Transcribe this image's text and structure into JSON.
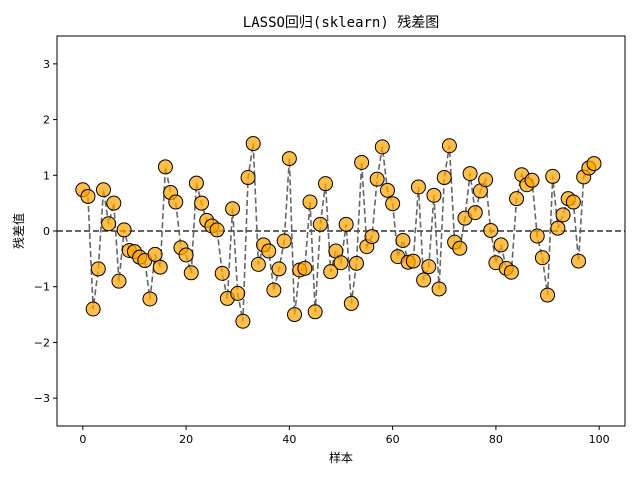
{
  "chart_data": {
    "type": "scatter",
    "title": "LASSO回归(sklearn) 残差图",
    "xlabel": "样本",
    "ylabel": "残差值",
    "xlim": [
      -5,
      105
    ],
    "ylim": [
      -3.5,
      3.5
    ],
    "xticks": [
      0,
      20,
      40,
      60,
      80,
      100
    ],
    "yticks": [
      -3,
      -2,
      -1,
      0,
      1,
      2,
      3
    ],
    "grid": false,
    "reference_line": {
      "y": 0,
      "style": "dashed",
      "color": "#333333"
    },
    "connector_line": {
      "style": "dashed",
      "color": "#555555"
    },
    "marker_color": "#FFA500",
    "marker_edge_color": "#000000",
    "x": [
      0,
      1,
      2,
      3,
      4,
      5,
      6,
      7,
      8,
      9,
      10,
      11,
      12,
      13,
      14,
      15,
      16,
      17,
      18,
      19,
      20,
      21,
      22,
      23,
      24,
      25,
      26,
      27,
      28,
      29,
      30,
      31,
      32,
      33,
      34,
      35,
      36,
      37,
      38,
      39,
      40,
      41,
      42,
      43,
      44,
      45,
      46,
      47,
      48,
      49,
      50,
      51,
      52,
      53,
      54,
      55,
      56,
      57,
      58,
      59,
      60,
      61,
      62,
      63,
      64,
      65,
      66,
      67,
      68,
      69,
      70,
      71,
      72,
      73,
      74,
      75,
      76,
      77,
      78,
      79,
      80,
      81,
      82,
      83,
      84,
      85,
      86,
      87,
      88,
      89,
      90,
      91,
      92,
      93,
      94,
      95,
      96,
      97,
      98,
      99
    ],
    "y": [
      0.74,
      0.62,
      -1.4,
      -0.68,
      0.74,
      0.13,
      0.5,
      -0.9,
      0.02,
      -0.35,
      -0.37,
      -0.47,
      -0.53,
      -1.22,
      -0.42,
      -0.65,
      1.15,
      0.69,
      0.52,
      -0.3,
      -0.43,
      -0.75,
      0.86,
      0.5,
      0.19,
      0.09,
      0.02,
      -0.76,
      -1.21,
      0.4,
      -1.12,
      -1.62,
      0.96,
      1.57,
      -0.6,
      -0.25,
      -0.36,
      -1.06,
      -0.68,
      -0.18,
      1.3,
      -1.5,
      -0.7,
      -0.67,
      0.52,
      -1.45,
      0.12,
      0.85,
      -0.73,
      -0.36,
      -0.57,
      0.12,
      -1.3,
      -0.58,
      1.23,
      -0.28,
      -0.1,
      0.93,
      1.51,
      0.73,
      0.49,
      -0.46,
      -0.17,
      -0.56,
      -0.54,
      0.79,
      -0.88,
      -0.64,
      0.64,
      -1.04,
      0.96,
      1.53,
      -0.2,
      -0.31,
      0.23,
      1.03,
      0.33,
      0.72,
      0.92,
      0.01,
      -0.57,
      -0.25,
      -0.67,
      -0.74,
      0.58,
      1.01,
      0.83,
      0.91,
      -0.09,
      -0.48,
      -1.15,
      0.98,
      0.05,
      0.29,
      0.58,
      0.52,
      -0.54,
      0.97,
      1.13,
      1.21
    ]
  }
}
